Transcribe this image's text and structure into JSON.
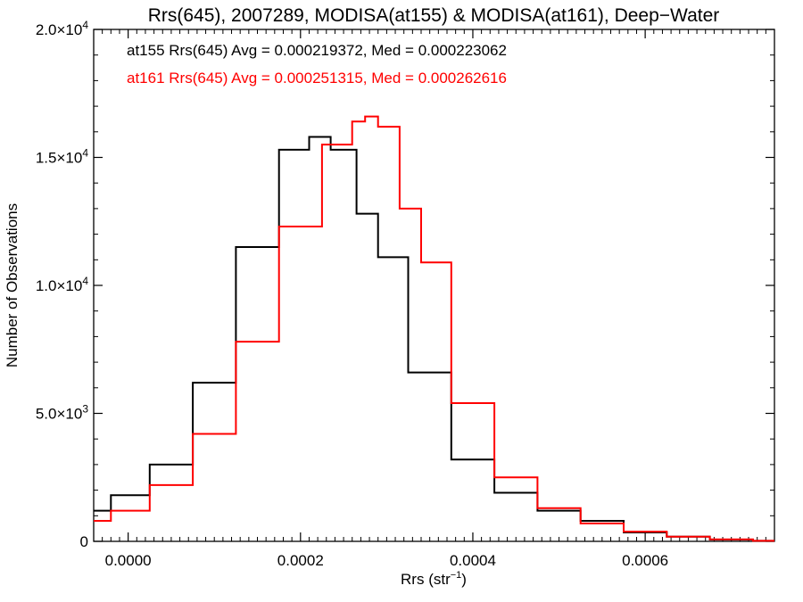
{
  "chart_data": {
    "type": "line",
    "title": "Rrs(645), 2007289, MODISA(at155) & MODISA(at161), Deep−Water",
    "xlabel": "Rrs (str",
    "xlabel_sup": "−1",
    "xlabel_close": ")",
    "ylabel": "Number of Observations",
    "xlim": [
      -4e-05,
      0.00075
    ],
    "ylim": [
      0,
      20000
    ],
    "grid": false,
    "xticks": [
      {
        "value": 0.0,
        "label": "0.0000"
      },
      {
        "value": 0.0002,
        "label": "0.0002"
      },
      {
        "value": 0.0004,
        "label": "0.0004"
      },
      {
        "value": 0.0006,
        "label": "0.0006"
      }
    ],
    "yticks": [
      {
        "value": 0,
        "base": "0",
        "exp": ""
      },
      {
        "value": 5000,
        "base": "5.0×10",
        "exp": "3"
      },
      {
        "value": 10000,
        "base": "1.0×10",
        "exp": "4"
      },
      {
        "value": 15000,
        "base": "1.5×10",
        "exp": "4"
      },
      {
        "value": 20000,
        "base": "2.0×10",
        "exp": "4"
      }
    ],
    "annotations": [
      {
        "text": "at155 Rrs(645) Avg = 0.000219372, Med = 0.000223062",
        "color": "#000000"
      },
      {
        "text": "at161 Rrs(645) Avg = 0.000251315, Med = 0.000262616",
        "color": "#ff0000"
      }
    ],
    "series": [
      {
        "color": "#000000",
        "x": [
          -4e-05,
          0.0,
          5e-05,
          0.0001,
          0.00015,
          0.0002,
          0.00022,
          0.00025,
          0.00028,
          0.0003,
          0.00035,
          0.0004,
          0.00045,
          0.0005,
          0.00055,
          0.0006,
          0.00065,
          0.0007,
          0.00075
        ],
        "y": [
          1200,
          1800,
          3000,
          6200,
          11500,
          15300,
          15800,
          15300,
          12800,
          11100,
          6600,
          3200,
          1900,
          1200,
          800,
          350,
          180,
          70,
          20
        ]
      },
      {
        "color": "#ff0000",
        "x": [
          -4e-05,
          0.0,
          5e-05,
          0.0001,
          0.00015,
          0.0002,
          0.00025,
          0.00027,
          0.00028,
          0.0003,
          0.00033,
          0.00035,
          0.0004,
          0.00045,
          0.0005,
          0.00055,
          0.0006,
          0.00065,
          0.0007,
          0.00075
        ],
        "y": [
          800,
          1200,
          2200,
          4200,
          7800,
          12300,
          15500,
          16400,
          16600,
          16200,
          13000,
          10900,
          5400,
          2500,
          1300,
          700,
          380,
          180,
          80,
          20
        ]
      }
    ]
  }
}
